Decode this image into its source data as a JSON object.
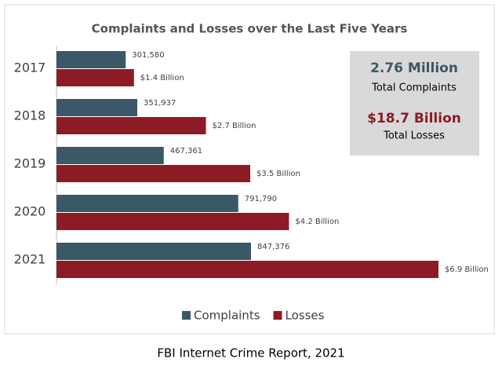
{
  "chart_data": {
    "type": "hbar",
    "title": "Complaints and Losses over the Last Five Years",
    "categories": [
      "2017",
      "2018",
      "2019",
      "2020",
      "2021"
    ],
    "series": [
      {
        "name": "Complaints",
        "color": "#3b5866",
        "values": [
          301580,
          351937,
          467361,
          791790,
          847376
        ],
        "value_labels": [
          "301,580",
          "351,937",
          "467,361",
          "791,790",
          "847,376"
        ]
      },
      {
        "name": "Losses",
        "color": "#8c1b25",
        "values": [
          1.4,
          2.7,
          3.5,
          4.2,
          6.9
        ],
        "value_labels": [
          "$1.4 Billion",
          "$2.7 Billion",
          "$3.5 Billion",
          "$4.2 Billion",
          "$6.9 Billion"
        ]
      }
    ],
    "summary": [
      {
        "value": "2.76 Million",
        "label": "Total Complaints"
      },
      {
        "value": "$18.7 Billion",
        "label": "Total Losses"
      }
    ],
    "legend": "bottom"
  },
  "caption": "FBI Internet Crime Report, 2021"
}
